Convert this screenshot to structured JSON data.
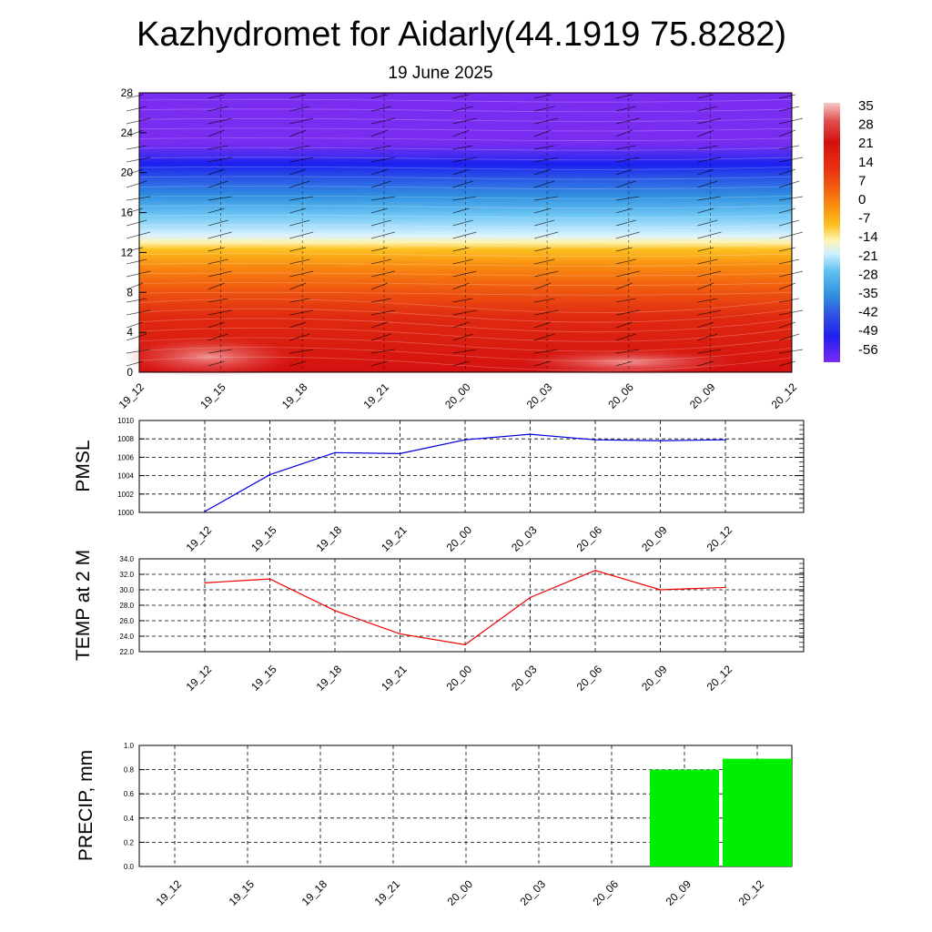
{
  "title": "Kazhydromet for Aidarly(44.1919 75.8282)",
  "subtitle": "19 June 2025",
  "time_labels": [
    "19_12",
    "19_15",
    "19_18",
    "19_21",
    "20_00",
    "20_03",
    "20_06",
    "20_09",
    "20_12"
  ],
  "chart_data": [
    {
      "type": "heatmap",
      "title": "",
      "xlabel": "",
      "ylabel": "",
      "x": [
        "19_12",
        "19_15",
        "19_18",
        "19_21",
        "20_00",
        "20_03",
        "20_06",
        "20_09",
        "20_12"
      ],
      "y_ticks": [
        "0",
        "4",
        "8",
        "12",
        "16",
        "20",
        "24",
        "28"
      ],
      "ylim": [
        0,
        28
      ],
      "colorbar": {
        "labels": [
          "35",
          "28",
          "21",
          "14",
          "7",
          "0",
          "-7",
          "-14",
          "-21",
          "-28",
          "-35",
          "-42",
          "-49",
          "-56"
        ],
        "colors": [
          "#f8c8c8",
          "#e05050",
          "#d41010",
          "#e83010",
          "#f26010",
          "#f89010",
          "#fcc020",
          "#fff0a0",
          "#d0f0ff",
          "#60c0f0",
          "#3090e0",
          "#3050e0",
          "#2020f0",
          "#7a2cf0"
        ]
      },
      "note_values": "temperature contour field vs height (km)"
    },
    {
      "type": "line",
      "xlabel": "",
      "ylabel": "PMSL",
      "x": [
        "19_12",
        "19_15",
        "19_18",
        "19_21",
        "20_00",
        "20_03",
        "20_06",
        "20_09",
        "20_12"
      ],
      "series": [
        {
          "values": [
            1000.1,
            1004.1,
            1006.5,
            1006.4,
            1007.9,
            1008.5,
            1007.9,
            1007.8,
            1007.9
          ]
        }
      ],
      "y_ticks": [
        "1000",
        "1002",
        "1004",
        "1006",
        "1008",
        "1010"
      ],
      "ylim": [
        1000,
        1010
      ],
      "color": "#0000dd",
      "grid": true
    },
    {
      "type": "line",
      "xlabel": "",
      "ylabel": "TEMP at 2 M",
      "x": [
        "19_12",
        "19_15",
        "19_18",
        "19_21",
        "20_00",
        "20_03",
        "20_06",
        "20_09",
        "20_12"
      ],
      "series": [
        {
          "values": [
            30.9,
            31.4,
            27.3,
            24.3,
            22.9,
            29.0,
            32.5,
            30.0,
            30.3
          ]
        }
      ],
      "y_ticks": [
        "22.0",
        "24.0",
        "26.0",
        "28.0",
        "30.0",
        "32.0",
        "34.0"
      ],
      "ylim": [
        22,
        34
      ],
      "color": "#ee0000",
      "grid": true
    },
    {
      "type": "bar",
      "xlabel": "",
      "ylabel": "PRECIP, mm",
      "categories": [
        "19_12",
        "19_15",
        "19_18",
        "19_21",
        "20_00",
        "20_03",
        "20_06",
        "20_09",
        "20_12"
      ],
      "values": [
        0,
        0,
        0,
        0,
        0,
        0,
        0,
        0.8,
        0.89
      ],
      "y_ticks": [
        "0.0",
        "0.2",
        "0.4",
        "0.6",
        "0.8",
        "1.0"
      ],
      "ylim": [
        0,
        1.0
      ],
      "color": "#00ee00",
      "grid": true
    }
  ]
}
